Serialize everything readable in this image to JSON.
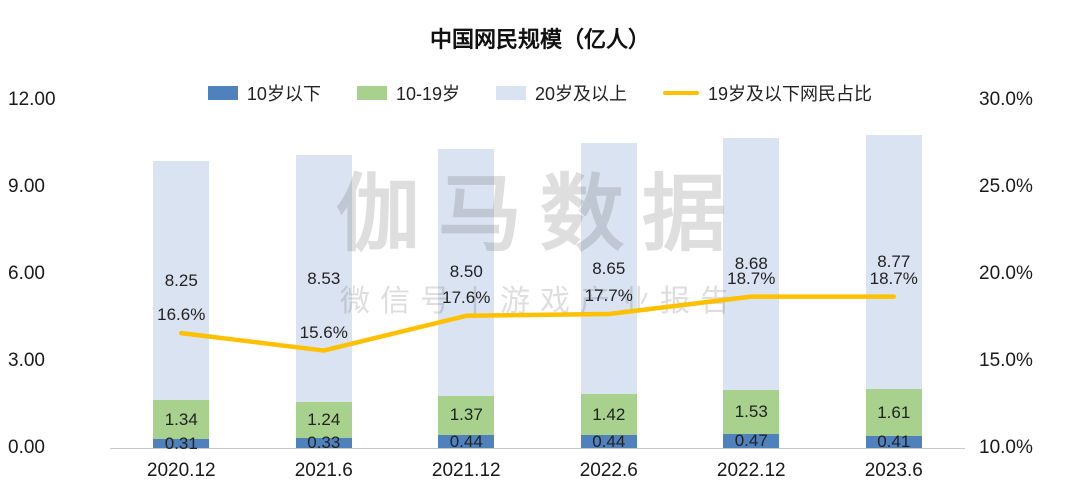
{
  "chart_data": {
    "type": "bar",
    "title": "中国网民规模（亿人）",
    "categories": [
      "2020.12",
      "2021.6",
      "2021.12",
      "2022.6",
      "2022.12",
      "2023.6"
    ],
    "series": [
      {
        "name": "10岁以下",
        "type": "bar",
        "color": "#4f81bd",
        "values": [
          0.31,
          0.33,
          0.44,
          0.44,
          0.47,
          0.41
        ]
      },
      {
        "name": "10-19岁",
        "type": "bar",
        "color": "#a9d18e",
        "values": [
          1.34,
          1.24,
          1.37,
          1.42,
          1.53,
          1.61
        ]
      },
      {
        "name": "20岁及以上",
        "type": "bar",
        "color": "#dae3f1",
        "values": [
          8.25,
          8.53,
          8.5,
          8.65,
          8.68,
          8.77
        ]
      },
      {
        "name": "19岁及以下网民占比",
        "type": "line",
        "color": "#ffc000",
        "values_pct": [
          16.6,
          15.6,
          17.6,
          17.7,
          18.7,
          18.7
        ]
      }
    ],
    "left_axis": {
      "min": 0,
      "max": 12,
      "ticks": [
        "0.00",
        "3.00",
        "6.00",
        "9.00",
        "12.00"
      ]
    },
    "right_axis": {
      "min": 10,
      "max": 30,
      "ticks": [
        "10.0%",
        "15.0%",
        "20.0%",
        "25.0%",
        "30.0%"
      ]
    },
    "legend_position": "top",
    "grid": false
  },
  "watermark": {
    "line1": "伽马数据",
    "line2": "微信号丨游戏产业报告"
  }
}
